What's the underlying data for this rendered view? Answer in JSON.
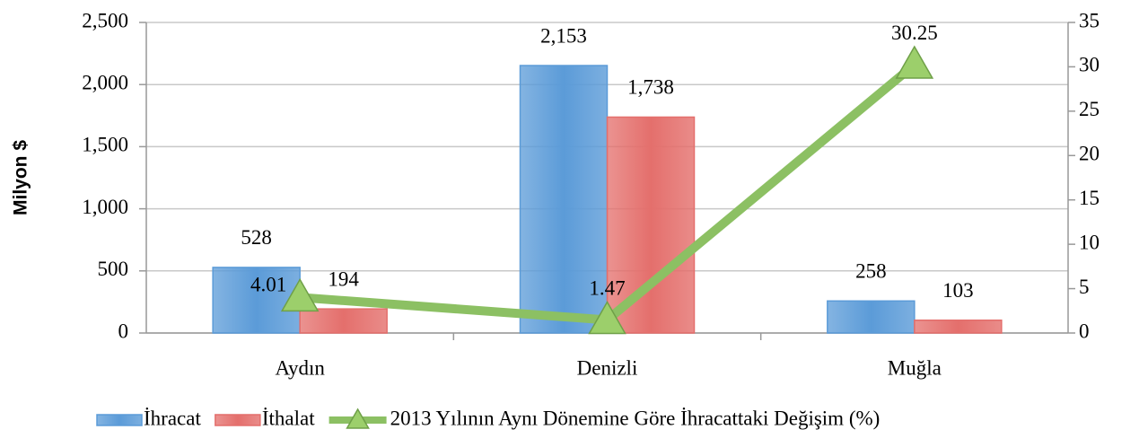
{
  "chart_data": {
    "type": "bar",
    "categories": [
      "Aydın",
      "Denizli",
      "Muğla"
    ],
    "y_label": "Milyon $",
    "series": [
      {
        "name": "İhracat",
        "color": "#5b9bd8",
        "values": [
          528,
          2153,
          258
        ],
        "value_labels": [
          "528",
          "2,153",
          "258"
        ]
      },
      {
        "name": "İthalat",
        "color": "#e46f6c",
        "values": [
          194,
          1738,
          103
        ],
        "value_labels": [
          "194",
          "1,738",
          "103"
        ]
      },
      {
        "name": "2013 Yılının Aynı Dönemine Göre İhracattaki Değişim (%)",
        "color": "#8cc063",
        "type": "line",
        "axis": "y2",
        "values": [
          4.01,
          1.47,
          30.25
        ]
      }
    ],
    "ylim": [
      0,
      2500
    ],
    "yticks": [
      0,
      500,
      {
        "value": 1000,
        "label": "1,000"
      },
      {
        "value": 1500,
        "label": "1,500"
      },
      {
        "value": 2000,
        "label": "2,000"
      },
      {
        "value": 2500,
        "label": "2,500"
      }
    ],
    "y2lim": [
      0,
      35
    ],
    "y2ticks": [
      0,
      5,
      10,
      15,
      20,
      25,
      30,
      35
    ],
    "grid": true,
    "legend": "bottom"
  }
}
